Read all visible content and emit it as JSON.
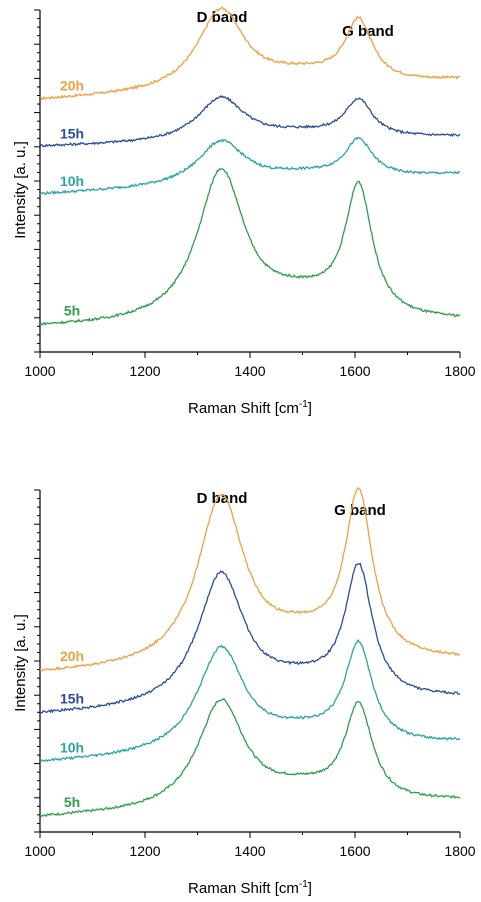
{
  "chart_data": [
    {
      "type": "line",
      "xlabel": "Raman Shift [cm",
      "xlabel_sup": "-1",
      "xlabel_suffix": "]",
      "ylabel": "Intensity [a. u.]",
      "xlim": [
        1000,
        1800
      ],
      "x_ticks": [
        "1000",
        "1200",
        "1400",
        "1600",
        "1800"
      ],
      "ylim": [
        0,
        10
      ],
      "annotations": {
        "d_band": "D band",
        "g_band": "G band"
      },
      "series": [
        {
          "name": "20h",
          "color": "#F0A040",
          "base": 7.35,
          "slope": 0.6,
          "d_height": 2.4,
          "g_height": 1.8
        },
        {
          "name": "15h",
          "color": "#2A4C9C",
          "base": 6.0,
          "slope": 0.3,
          "d_height": 1.3,
          "g_height": 1.1
        },
        {
          "name": "10h",
          "color": "#2AA3A3",
          "base": 4.6,
          "slope": 0.6,
          "d_height": 1.3,
          "g_height": 1.1
        },
        {
          "name": "5h",
          "color": "#2E9E4A",
          "base": 0.7,
          "slope": 0.2,
          "d_height": 4.5,
          "g_height": 3.8
        }
      ]
    },
    {
      "type": "line",
      "xlabel": "Raman Shift [cm",
      "xlabel_sup": "-1",
      "xlabel_suffix": "]",
      "ylabel": "Intensity [a. u.]",
      "xlim": [
        1000,
        1800
      ],
      "x_ticks": [
        "1000",
        "1200",
        "1400",
        "1600",
        "1800"
      ],
      "ylim": [
        0,
        10
      ],
      "annotations": {
        "d_band": "D band",
        "g_band": "G band"
      },
      "series": [
        {
          "name": "20h",
          "color": "#F0A040",
          "base": 4.6,
          "slope": 0.4,
          "d_height": 5.0,
          "g_height": 4.8
        },
        {
          "name": "15h",
          "color": "#2A4C9C",
          "base": 3.4,
          "slope": 0.5,
          "d_height": 3.9,
          "g_height": 3.8
        },
        {
          "name": "10h",
          "color": "#2AA3A3",
          "base": 2.0,
          "slope": 0.6,
          "d_height": 3.1,
          "g_height": 2.9
        },
        {
          "name": "5h",
          "color": "#2E9E4A",
          "base": 0.4,
          "slope": 0.5,
          "d_height": 3.2,
          "g_height": 2.8
        }
      ]
    }
  ]
}
